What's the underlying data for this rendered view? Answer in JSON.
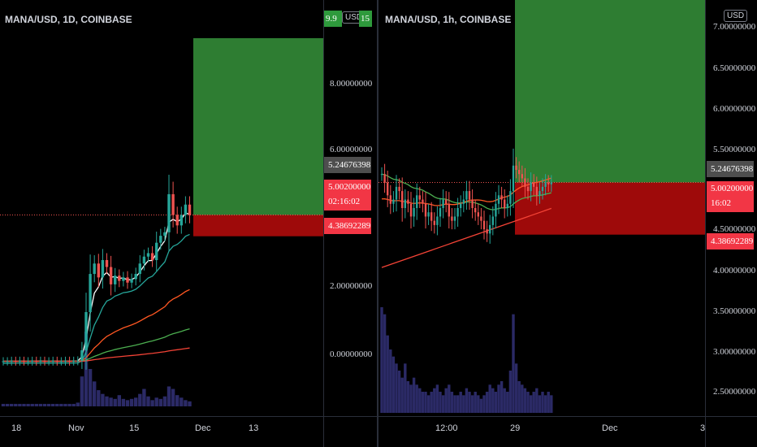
{
  "colors": {
    "bg": "#000000",
    "green_zone": "#2e7d32",
    "red_zone": "#9e0a0a",
    "candle_up": "#26a69a",
    "candle_down": "#ef5350",
    "volume": "#2b2a66",
    "ema_white": "#ffffff",
    "ema_teal": "#26a69a",
    "ema_orange": "#ff5722",
    "ema_green": "#4caf50",
    "ema_red": "#f44336",
    "price_line": "#ef5350",
    "tag_red": "#f23645",
    "tag_grey": "#4e4e4e"
  },
  "left": {
    "title": "MANA/USD, 1D, COINBASE",
    "price_ticks": [
      "8.00000000",
      "6.00000000",
      "2.00000000",
      "0.00000000"
    ],
    "time_ticks": [
      "18",
      "Nov",
      "15",
      "Dec",
      "13"
    ],
    "tag_target": "5.24676398",
    "tag_current": "5.00200000",
    "tag_countdown": "02:16:02",
    "tag_stop": "4.38692289",
    "corner_left": "9.9",
    "corner_usd": "USD",
    "corner_right": "15"
  },
  "right": {
    "title": "MANA/USD, 1h, COINBASE",
    "usd_badge": "USD",
    "price_ticks": [
      "7.00000000",
      "6.50000000",
      "6.00000000",
      "5.50000000",
      "4.50000000",
      "4.00000000",
      "3.50000000",
      "3.00000000",
      "2.50000000"
    ],
    "time_ticks": [
      "12:00",
      "29",
      "Dec",
      "3"
    ],
    "tag_target": "5.24676398",
    "tag_current": "5.00200000",
    "tag_countdown": "16:02",
    "tag_stop": "4.38692289"
  },
  "chart_data": [
    {
      "type": "candlestick",
      "title": "MANA/USD, 1D, COINBASE",
      "x_ticks": [
        "18",
        "Nov",
        "15",
        "Dec",
        "13"
      ],
      "y_ticks": [
        "8.00000000",
        "6.00000000",
        "2.00000000",
        "0.00000000"
      ],
      "ylim": [
        -0.8,
        11.2
      ],
      "close_series": [
        0.78,
        0.78,
        0.79,
        0.78,
        0.79,
        0.78,
        0.78,
        0.79,
        0.78,
        0.79,
        0.78,
        0.78,
        0.79,
        0.78,
        0.78,
        0.79,
        0.78,
        0.79,
        0.8,
        1.1,
        2.2,
        3.3,
        3.6,
        3.2,
        3.7,
        3.5,
        3.0,
        3.25,
        3.1,
        3.2,
        3.05,
        3.15,
        3.3,
        3.6,
        3.8,
        3.9,
        3.7,
        4.2,
        4.4,
        4.5,
        5.6,
        5.0,
        4.7,
        5.0,
        5.3,
        5.0
      ],
      "volume": [
        2,
        2,
        2,
        2,
        2,
        2,
        2,
        2,
        2,
        2,
        2,
        2,
        2,
        2,
        2,
        2,
        2,
        2,
        3,
        24,
        60,
        30,
        20,
        13,
        10,
        8,
        7,
        6,
        9,
        6,
        5,
        6,
        7,
        10,
        14,
        8,
        5,
        7,
        6,
        8,
        16,
        14,
        9,
        7,
        5,
        4
      ],
      "ema_lines": [
        "white",
        "teal",
        "orange",
        "green",
        "red"
      ],
      "position": {
        "target_top": 10.1,
        "entry": 5.0,
        "stop": 4.387
      },
      "last_price": 5.002,
      "target_price": 5.24676398,
      "stop_price": 4.38692289
    },
    {
      "type": "candlestick",
      "title": "MANA/USD, 1h, COINBASE",
      "x_ticks": [
        "12:00",
        "29",
        "Dec",
        "3"
      ],
      "y_ticks": [
        "7.00000000",
        "6.50000000",
        "6.00000000",
        "5.50000000",
        "4.50000000",
        "4.00000000",
        "3.50000000",
        "3.00000000",
        "2.50000000"
      ],
      "ylim": [
        2.25,
        7.15
      ],
      "close_series": [
        5.1,
        5.0,
        4.85,
        4.75,
        4.8,
        4.95,
        4.9,
        4.7,
        4.8,
        4.75,
        4.6,
        4.7,
        4.85,
        4.8,
        4.75,
        4.6,
        4.65,
        4.55,
        4.5,
        4.6,
        4.7,
        4.8,
        4.75,
        4.6,
        4.55,
        4.6,
        4.7,
        4.75,
        4.8,
        4.9,
        4.8,
        4.7,
        4.65,
        4.6,
        4.55,
        4.45,
        4.4,
        4.5,
        4.6,
        4.75,
        4.85,
        4.8,
        4.7,
        4.75,
        4.9,
        5.2,
        5.15,
        5.1,
        5.05,
        4.95,
        4.9,
        5.0,
        4.95,
        4.85,
        4.9,
        4.95,
        5.0,
        4.98,
        5.0
      ],
      "volume": [
        30,
        28,
        22,
        18,
        16,
        14,
        12,
        10,
        14,
        9,
        8,
        10,
        8,
        7,
        6,
        6,
        5,
        6,
        7,
        8,
        6,
        5,
        7,
        8,
        6,
        5,
        5,
        6,
        5,
        7,
        6,
        5,
        6,
        5,
        4,
        5,
        6,
        8,
        7,
        6,
        8,
        9,
        7,
        6,
        12,
        28,
        14,
        9,
        8,
        7,
        6,
        5,
        6,
        7,
        5,
        6,
        5,
        6,
        5
      ],
      "ema_lines": [
        "green",
        "orange",
        "red"
      ],
      "position": {
        "target_top": 7.3,
        "entry": 5.0,
        "stop": 4.387
      },
      "last_price": 5.002,
      "target_price": 5.24676398,
      "stop_price": 4.38692289
    }
  ]
}
